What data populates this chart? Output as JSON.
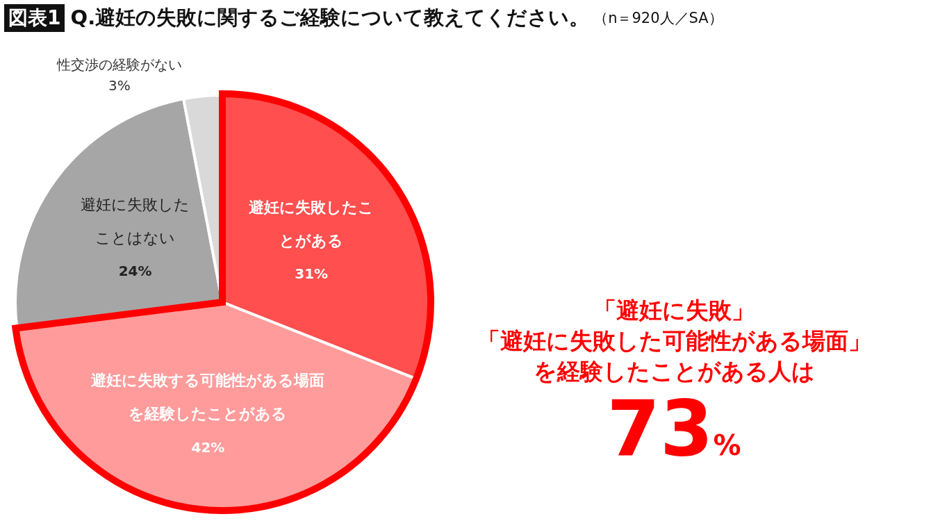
{
  "chart_data": {
    "type": "pie",
    "title": "Q.避妊の失敗に関するご経験について教えてください。",
    "subtitle": "（n＝920人／SA）",
    "categories": [
      "避妊に失敗したことがある",
      "避妊に失敗する可能性がある場面を経験したことがある",
      "避妊に失敗したことはない",
      "性交渉の経験がない"
    ],
    "values": [
      31,
      42,
      24,
      3
    ],
    "colors": [
      "#ff4f4f",
      "#ff9b9b",
      "#a6a6a6",
      "#d9d9d9"
    ],
    "value_labels": [
      "31%",
      "42%",
      "24%",
      "3%"
    ],
    "annotations": [
      "図表1",
      "「避妊に失敗」",
      "「避妊に失敗した可能性がある場面」",
      "を経験したことがある人は",
      "73%"
    ],
    "legend": false
  }
}
